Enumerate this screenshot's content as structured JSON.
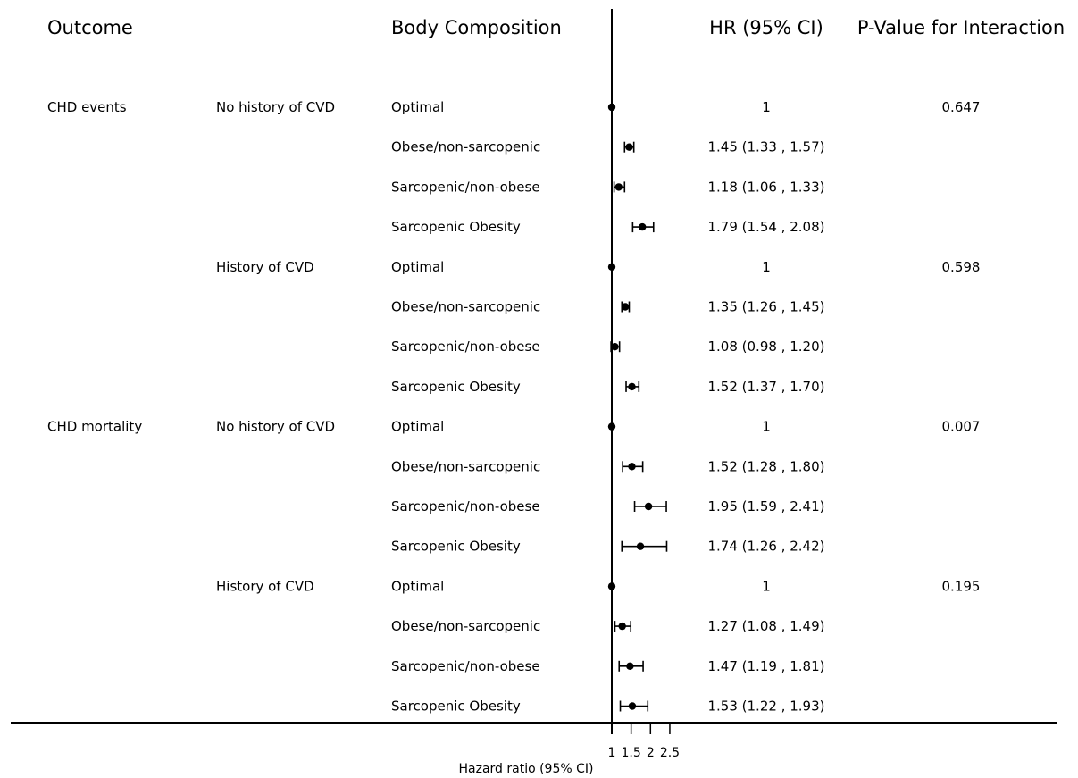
{
  "headers": {
    "outcome": "Outcome",
    "body_composition": "Body Composition",
    "hr": "HR (95% CI)",
    "p_value": "P-Value for Interaction"
  },
  "chart_data": {
    "type": "forest",
    "xlabel": "Hazard ratio (95% CI)",
    "xlim": [
      1,
      2.5
    ],
    "ticks": [
      1,
      1.5,
      2,
      2.5
    ],
    "tick_labels": [
      "1",
      "1.5",
      "2",
      "2.5"
    ],
    "reference_line": 1,
    "rows": [
      {
        "outcome": "CHD events",
        "subgroup": "No history of CVD",
        "category": "Optimal",
        "hr": 1,
        "lo": 1,
        "hi": 1,
        "label": "1",
        "p": "0.647"
      },
      {
        "outcome": "",
        "subgroup": "",
        "category": "Obese/non-sarcopenic",
        "hr": 1.45,
        "lo": 1.33,
        "hi": 1.57,
        "label": "1.45 (1.33 , 1.57)",
        "p": ""
      },
      {
        "outcome": "",
        "subgroup": "",
        "category": "Sarcopenic/non-obese",
        "hr": 1.18,
        "lo": 1.06,
        "hi": 1.33,
        "label": "1.18 (1.06 , 1.33)",
        "p": ""
      },
      {
        "outcome": "",
        "subgroup": "",
        "category": "Sarcopenic Obesity",
        "hr": 1.79,
        "lo": 1.54,
        "hi": 2.08,
        "label": "1.79 (1.54 , 2.08)",
        "p": ""
      },
      {
        "outcome": "",
        "subgroup": "History of CVD",
        "category": "Optimal",
        "hr": 1,
        "lo": 1,
        "hi": 1,
        "label": "1",
        "p": "0.598"
      },
      {
        "outcome": "",
        "subgroup": "",
        "category": "Obese/non-sarcopenic",
        "hr": 1.35,
        "lo": 1.26,
        "hi": 1.45,
        "label": "1.35 (1.26 , 1.45)",
        "p": ""
      },
      {
        "outcome": "",
        "subgroup": "",
        "category": "Sarcopenic/non-obese",
        "hr": 1.08,
        "lo": 0.98,
        "hi": 1.2,
        "label": "1.08 (0.98 , 1.20)",
        "p": ""
      },
      {
        "outcome": "",
        "subgroup": "",
        "category": "Sarcopenic Obesity",
        "hr": 1.52,
        "lo": 1.37,
        "hi": 1.7,
        "label": "1.52 (1.37 , 1.70)",
        "p": ""
      },
      {
        "outcome": "CHD mortality",
        "subgroup": "No history of CVD",
        "category": "Optimal",
        "hr": 1,
        "lo": 1,
        "hi": 1,
        "label": "1",
        "p": "0.007"
      },
      {
        "outcome": "",
        "subgroup": "",
        "category": "Obese/non-sarcopenic",
        "hr": 1.52,
        "lo": 1.28,
        "hi": 1.8,
        "label": "1.52 (1.28 , 1.80)",
        "p": ""
      },
      {
        "outcome": "",
        "subgroup": "",
        "category": "Sarcopenic/non-obese",
        "hr": 1.95,
        "lo": 1.59,
        "hi": 2.41,
        "label": "1.95 (1.59 , 2.41)",
        "p": ""
      },
      {
        "outcome": "",
        "subgroup": "",
        "category": "Sarcopenic Obesity",
        "hr": 1.74,
        "lo": 1.26,
        "hi": 2.42,
        "label": "1.74 (1.26 , 2.42)",
        "p": ""
      },
      {
        "outcome": "",
        "subgroup": "History of CVD",
        "category": "Optimal",
        "hr": 1,
        "lo": 1,
        "hi": 1,
        "label": "1",
        "p": "0.195"
      },
      {
        "outcome": "",
        "subgroup": "",
        "category": "Obese/non-sarcopenic",
        "hr": 1.27,
        "lo": 1.08,
        "hi": 1.49,
        "label": "1.27 (1.08 , 1.49)",
        "p": ""
      },
      {
        "outcome": "",
        "subgroup": "",
        "category": "Sarcopenic/non-obese",
        "hr": 1.47,
        "lo": 1.19,
        "hi": 1.81,
        "label": "1.47 (1.19 , 1.81)",
        "p": ""
      },
      {
        "outcome": "",
        "subgroup": "",
        "category": "Sarcopenic Obesity",
        "hr": 1.53,
        "lo": 1.22,
        "hi": 1.93,
        "label": "1.53 (1.22 , 1.93)",
        "p": ""
      }
    ]
  }
}
